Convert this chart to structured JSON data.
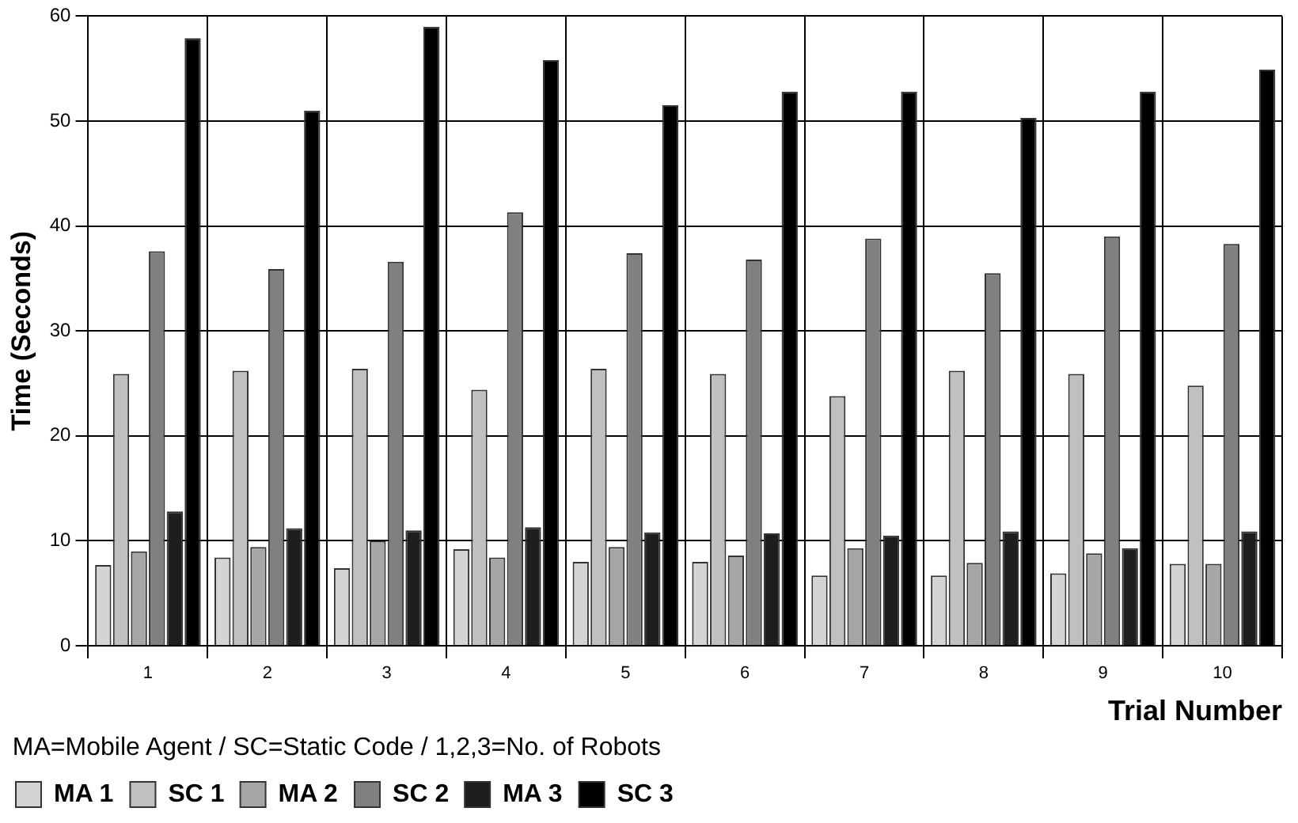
{
  "chart_data": {
    "type": "bar",
    "xlabel": "Trial Number",
    "ylabel": "Time (Seconds)",
    "legend_title": "MA=Mobile Agent / SC=Static Code / 1,2,3=No. of Robots",
    "categories": [
      "1",
      "2",
      "3",
      "4",
      "5",
      "6",
      "7",
      "8",
      "9",
      "10"
    ],
    "series": [
      {
        "name": "MA 1",
        "color": "#d4d4d4",
        "values": [
          7.7,
          8.4,
          7.4,
          9.2,
          8.0,
          8.0,
          6.7,
          6.7,
          6.9,
          7.8
        ]
      },
      {
        "name": "SC 1",
        "color": "#c0c0c0",
        "values": [
          25.9,
          26.2,
          26.4,
          24.4,
          26.4,
          25.9,
          23.8,
          26.2,
          25.9,
          24.8
        ]
      },
      {
        "name": "MA 2",
        "color": "#a6a6a6",
        "values": [
          9.0,
          9.4,
          10.0,
          8.4,
          9.4,
          8.6,
          9.3,
          7.9,
          8.8,
          7.8
        ]
      },
      {
        "name": "SC 2",
        "color": "#808080",
        "values": [
          37.6,
          35.9,
          36.6,
          41.3,
          37.4,
          36.8,
          38.8,
          35.5,
          39.0,
          38.3
        ]
      },
      {
        "name": "MA 3",
        "color": "#1e1e1e",
        "values": [
          12.8,
          11.2,
          11.0,
          11.3,
          10.8,
          10.7,
          10.5,
          10.9,
          9.3,
          10.9
        ]
      },
      {
        "name": "SC 3",
        "color": "#000000",
        "values": [
          57.9,
          51.0,
          59.0,
          55.8,
          51.5,
          52.8,
          52.8,
          50.3,
          52.8,
          54.9
        ]
      }
    ],
    "ylim": [
      0,
      60
    ],
    "yticks": [
      0,
      10,
      20,
      30,
      40,
      50,
      60
    ],
    "grid": true,
    "legend": "bottom"
  }
}
